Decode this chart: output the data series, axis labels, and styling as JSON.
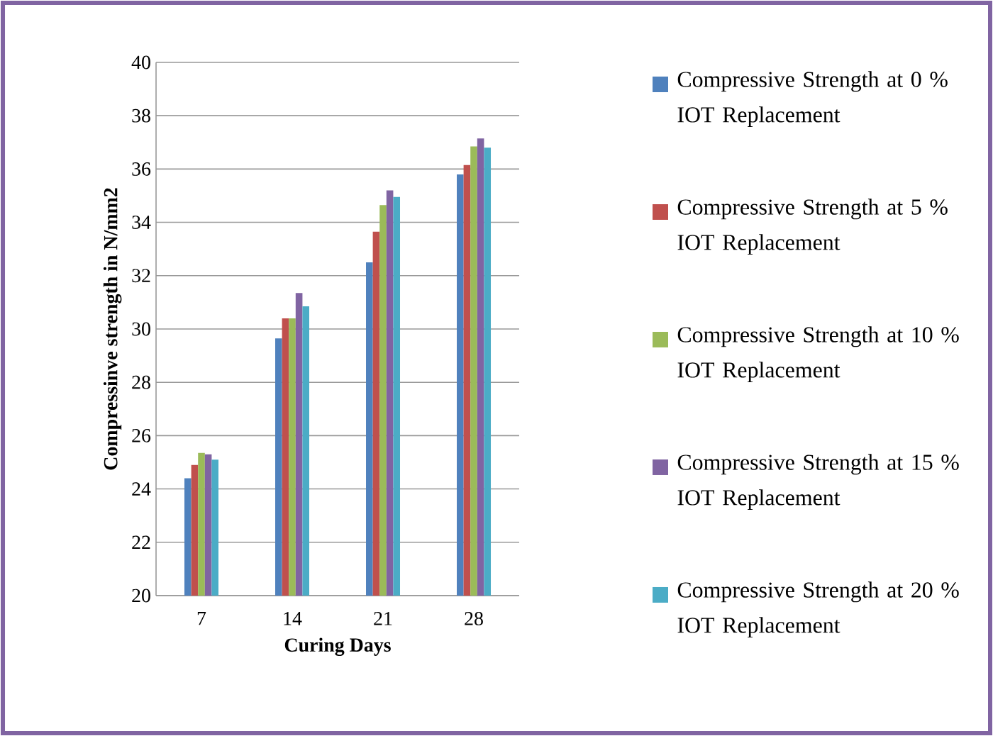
{
  "chart_data": {
    "type": "bar",
    "xlabel": "Curing Days",
    "ylabel": "Compressinve strength in N/mm2",
    "categories": [
      "7",
      "14",
      "21",
      "28"
    ],
    "series": [
      {
        "name": "Compressive Strength at 0 % IOT Replacement",
        "color": "#4f81bd",
        "values": [
          24.4,
          29.65,
          32.5,
          35.8
        ]
      },
      {
        "name": "Compressive Strength at 5 % IOT Replacement",
        "color": "#c0504d",
        "values": [
          24.9,
          30.4,
          33.65,
          36.15
        ]
      },
      {
        "name": "Compressive Strength at 10 % IOT Replacement",
        "color": "#9bbb59",
        "values": [
          25.35,
          30.4,
          34.65,
          36.85
        ]
      },
      {
        "name": "Compressive Strength at 15 % IOT Replacement",
        "color": "#8064a2",
        "values": [
          25.3,
          31.35,
          35.2,
          37.15
        ]
      },
      {
        "name": "Compressive Strength at 20 % IOT Replacement",
        "color": "#4bacc6",
        "values": [
          25.1,
          30.85,
          34.95,
          36.8
        ]
      }
    ],
    "ylim": [
      20,
      40
    ],
    "yticks": [
      20,
      22,
      24,
      26,
      28,
      30,
      32,
      34,
      36,
      38,
      40
    ],
    "grid": "y",
    "legend": "right"
  }
}
